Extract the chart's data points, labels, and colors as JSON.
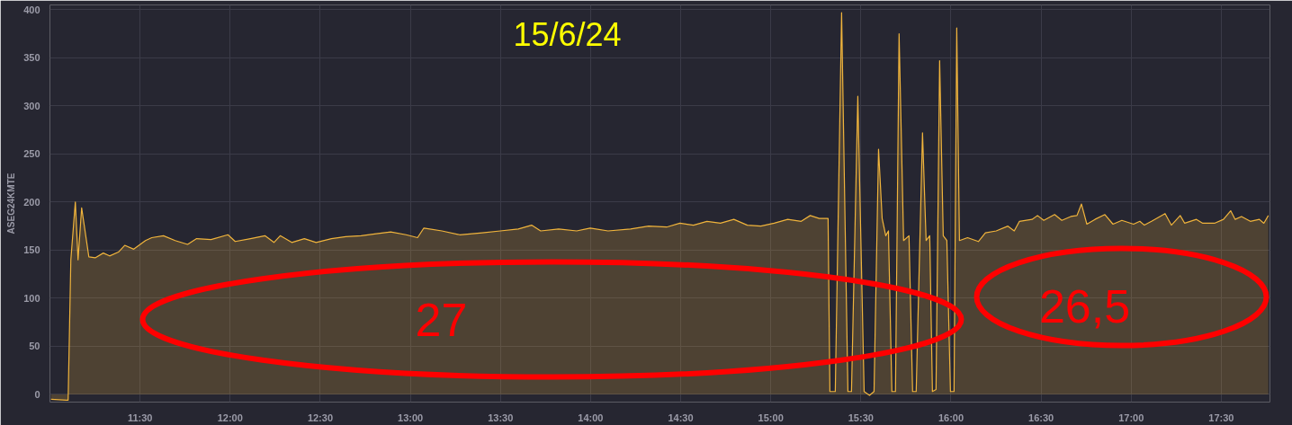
{
  "chart_data": {
    "type": "area",
    "title": "15/6/24",
    "ylabel": "ASEG24KMTE",
    "x": [
      11.006,
      11.091,
      11.101,
      11.116,
      11.141,
      11.156,
      11.176,
      11.216,
      11.251,
      11.296,
      11.331,
      11.38,
      11.415,
      11.465,
      11.53,
      11.565,
      11.63,
      11.695,
      11.764,
      11.814,
      11.894,
      11.988,
      12.028,
      12.113,
      12.193,
      12.243,
      12.278,
      12.342,
      12.412,
      12.477,
      12.562,
      12.642,
      12.727,
      12.811,
      12.891,
      12.976,
      13.04,
      13.075,
      13.175,
      13.274,
      13.399,
      13.499,
      13.599,
      13.673,
      13.723,
      13.823,
      13.923,
      13.998,
      14.097,
      14.222,
      14.322,
      14.422,
      14.496,
      14.571,
      14.646,
      14.721,
      14.795,
      14.87,
      14.945,
      15.019,
      15.094,
      15.169,
      15.219,
      15.269,
      15.318,
      15.328,
      15.358,
      15.393,
      15.428,
      15.448,
      15.483,
      15.518,
      15.548,
      15.573,
      15.598,
      15.618,
      15.638,
      15.653,
      15.672,
      15.692,
      15.712,
      15.737,
      15.767,
      15.787,
      15.807,
      15.842,
      15.862,
      15.882,
      15.897,
      15.917,
      15.937,
      15.957,
      15.977,
      15.997,
      16.017,
      16.032,
      16.047,
      16.092,
      16.152,
      16.191,
      16.251,
      16.316,
      16.351,
      16.38,
      16.45,
      16.48,
      16.515,
      16.575,
      16.615,
      16.665,
      16.699,
      16.724,
      16.754,
      16.799,
      16.854,
      16.899,
      16.948,
      17.013,
      17.048,
      17.073,
      17.113,
      17.188,
      17.223,
      17.272,
      17.297,
      17.362,
      17.397,
      17.462,
      17.512,
      17.552,
      17.577,
      17.612,
      17.661,
      17.711,
      17.736,
      17.761
    ],
    "series": [
      {
        "color": "#f0b43c",
        "values": [
          -5,
          -6,
          -6,
          140,
          200,
          140,
          194,
          143,
          142,
          147,
          144,
          148,
          155,
          151,
          160,
          163,
          165,
          160,
          156,
          162,
          161,
          166,
          159,
          162,
          165,
          158,
          165,
          158,
          162,
          158,
          162,
          164,
          165,
          167,
          169,
          166,
          163,
          173,
          170,
          166,
          168,
          170,
          172,
          176,
          170,
          172,
          170,
          173,
          170,
          172,
          175,
          174,
          178,
          176,
          180,
          178,
          182,
          176,
          175,
          178,
          182,
          180,
          186,
          183,
          183,
          3,
          3,
          397,
          3,
          3,
          310,
          3,
          -1,
          3,
          255,
          183,
          165,
          170,
          3,
          3,
          375,
          160,
          165,
          3,
          3,
          272,
          160,
          165,
          3,
          5,
          347,
          165,
          160,
          3,
          3,
          381,
          160,
          163,
          159,
          168,
          170,
          175,
          170,
          180,
          182,
          186,
          181,
          187,
          181,
          185,
          186,
          198,
          177,
          182,
          187,
          177,
          181,
          177,
          180,
          176,
          180,
          188,
          176,
          186,
          178,
          182,
          178,
          178,
          182,
          191,
          182,
          185,
          180,
          182,
          178,
          186
        ]
      }
    ],
    "xlim": [
      11.0,
      17.77
    ],
    "xticks": [
      {
        "value": 11.5,
        "label": "11:30"
      },
      {
        "value": 12,
        "label": "12:00"
      },
      {
        "value": 12.5,
        "label": "12:30"
      },
      {
        "value": 13,
        "label": "13:00"
      },
      {
        "value": 13.5,
        "label": "13:30"
      },
      {
        "value": 14,
        "label": "14:00"
      },
      {
        "value": 14.5,
        "label": "14:30"
      },
      {
        "value": 15,
        "label": "15:00"
      },
      {
        "value": 15.5,
        "label": "15:30"
      },
      {
        "value": 16,
        "label": "16:00"
      },
      {
        "value": 16.5,
        "label": "16:30"
      },
      {
        "value": 17,
        "label": "17:00"
      },
      {
        "value": 17.5,
        "label": "17:30"
      }
    ],
    "ylim": [
      -8,
      405
    ],
    "yticks": [
      0,
      50,
      100,
      150,
      200,
      250,
      300,
      350,
      400
    ],
    "grid": true,
    "annotations": [
      "27",
      "26,5"
    ]
  }
}
